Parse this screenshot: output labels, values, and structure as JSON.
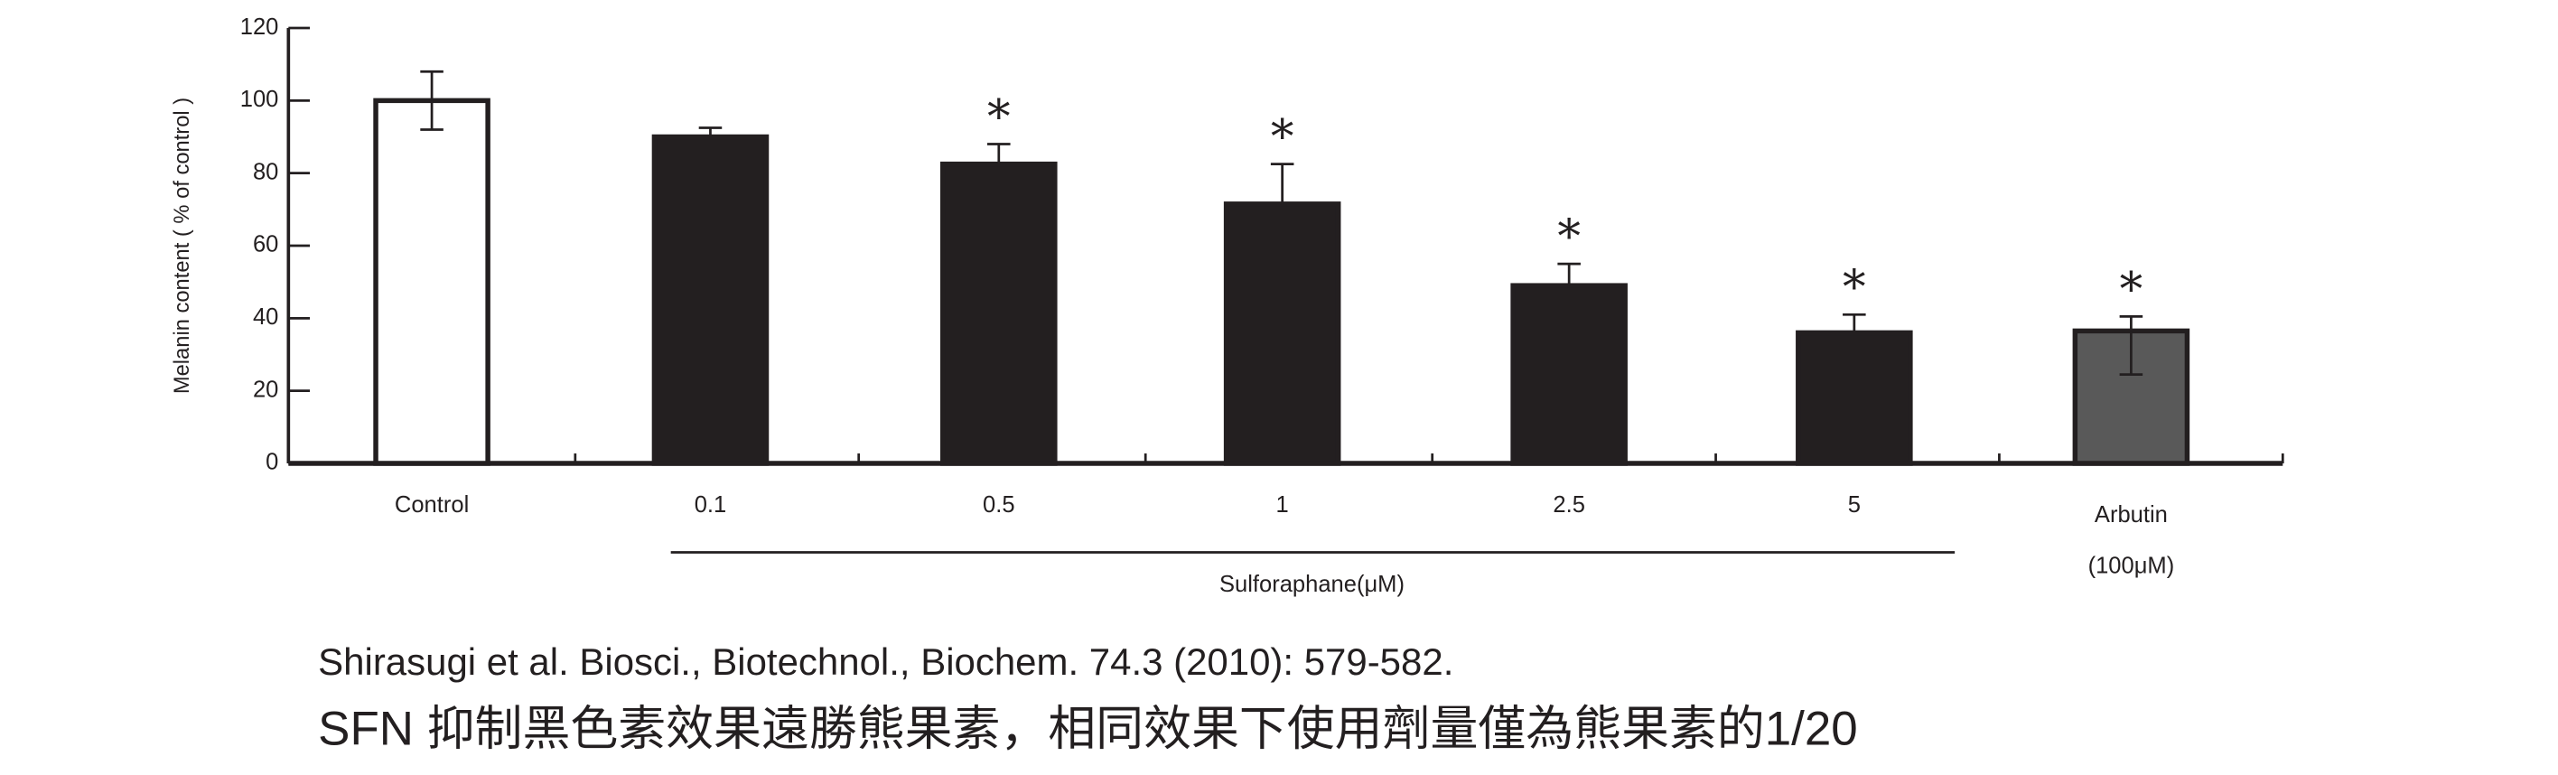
{
  "chart_data": {
    "type": "bar",
    "y_label": "Melanin content ( % of control )",
    "categories": [
      "Control",
      "0.1",
      "0.5",
      "1",
      "2.5",
      "5",
      "Arbutin"
    ],
    "category_sublabels": [
      null,
      null,
      null,
      null,
      null,
      null,
      "(100μM)"
    ],
    "group_label": "Sulforaphane(μM)",
    "values": [
      100,
      90,
      82.5,
      71.5,
      49,
      36,
      36.5
    ],
    "errors": [
      8,
      2.5,
      5.5,
      11,
      6,
      5,
      4
    ],
    "errors_lower": [
      8,
      null,
      null,
      null,
      null,
      null,
      12
    ],
    "significance": [
      null,
      null,
      "*",
      "*",
      "*",
      "*",
      "*"
    ],
    "colors": [
      "#ffffff",
      "#231f20",
      "#231f20",
      "#231f20",
      "#231f20",
      "#231f20",
      "#595959"
    ],
    "ylim": [
      0,
      120
    ],
    "yticks": [
      0,
      20,
      40,
      60,
      80,
      100,
      120
    ]
  },
  "citation": "Shirasugi et al. Biosci., Biotechnol., Biochem. 74.3 (2010): 579-582.",
  "caption": "SFN 抑制黑色素效果遠勝熊果素，相同效果下使用劑量僅為熊果素的1/20"
}
